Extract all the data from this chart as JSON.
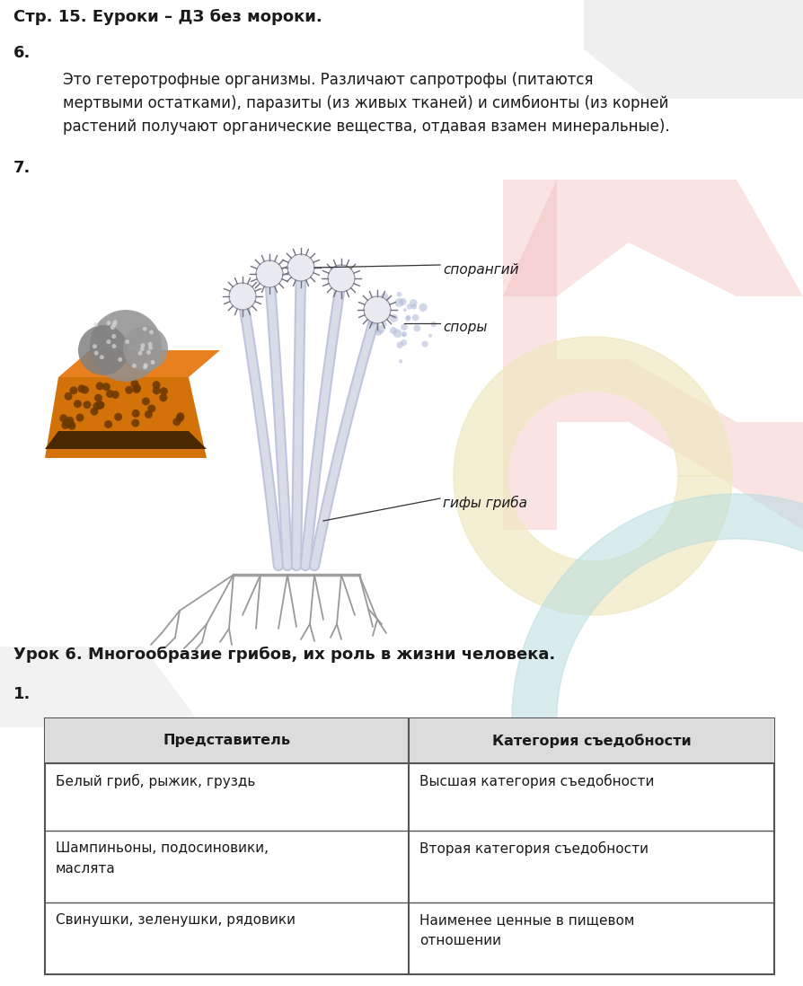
{
  "bg_color": "#ffffff",
  "title": "Стр. 15. Еуроки – ДЗ без мороки.",
  "section6_label": "6.",
  "section6_line1": "Это гетеротрофные организмы. Различают сапротрофы (питаются",
  "section6_line2": "мертвыми остатками), паразиты (из живых тканей) и симбионты (из корней",
  "section6_line3": "растений получают органические вещества, отдавая взамен минеральные).",
  "section7_label": "7.",
  "lesson_title": "Урок 6. Многообразие грибов, их роль в жизни человека.",
  "section1_label": "1.",
  "table_headers": [
    "Представитель",
    "Категория съедобности"
  ],
  "col1_rows": [
    "Белый гриб, рыжик, груздь",
    "Шампиньоны, подосиновики,\nмаслята",
    "Свинушки, зеленушки, рядовики"
  ],
  "col2_rows": [
    "Высшая категория съедобности",
    "Вторая категория съедобности",
    "Наименее ценные в пищевом\nотношении"
  ],
  "label_sporangiy": "спорангий",
  "label_spory": "споры",
  "label_gify": "гифы гриба",
  "text_color": "#1a1a1a",
  "table_border": "#555555",
  "watermark_yellow_color": "#f0e8c0",
  "watermark_pink_color": "#f0b0b0",
  "watermark_blue_color": "#b8dde0",
  "watermark_gray_color": "#c0c0c0"
}
